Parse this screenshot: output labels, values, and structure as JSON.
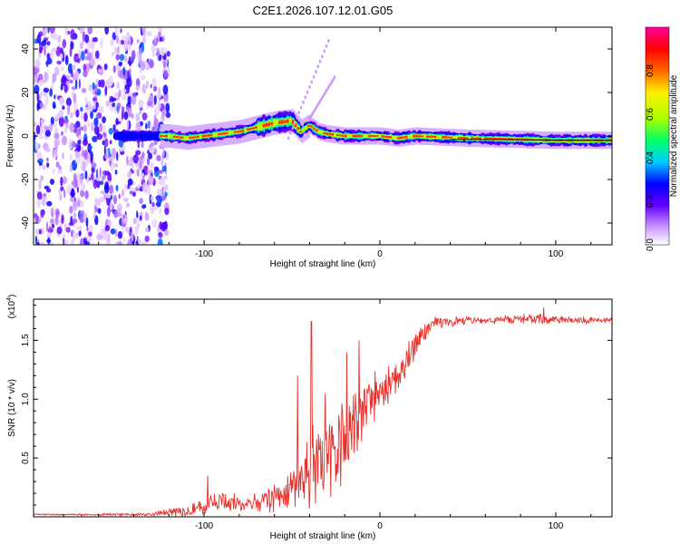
{
  "title": "C2E1.2026.107.12.01.G05",
  "chart_data": [
    {
      "type": "heatmap",
      "name": "spectrogram",
      "xlabel": "Height of straight line (km)",
      "ylabel": "Frequency (Hz)",
      "xlim": [
        -197,
        132
      ],
      "ylim": [
        -50,
        50
      ],
      "x_ticks": [
        -100,
        0,
        100
      ],
      "x_tick_labels": [
        "-100",
        "0",
        "100"
      ],
      "y_ticks": [
        -40,
        -20,
        0,
        20,
        40
      ],
      "y_tick_labels": [
        "-40",
        "-20",
        "0",
        "20",
        "40"
      ],
      "noise_region_x": [
        -197,
        -120
      ],
      "signal_track": [
        {
          "x": -150,
          "f": 0
        },
        {
          "x": -120,
          "f": 0
        },
        {
          "x": -110,
          "f": -1
        },
        {
          "x": -100,
          "f": 0
        },
        {
          "x": -90,
          "f": 1
        },
        {
          "x": -80,
          "f": 2
        },
        {
          "x": -70,
          "f": 4
        },
        {
          "x": -60,
          "f": 6
        },
        {
          "x": -50,
          "f": 7
        },
        {
          "x": -45,
          "f": 2
        },
        {
          "x": -40,
          "f": 5
        },
        {
          "x": -35,
          "f": 2
        },
        {
          "x": -30,
          "f": 1
        },
        {
          "x": -20,
          "f": 0
        },
        {
          "x": -10,
          "f": 0
        },
        {
          "x": 0,
          "f": 0
        },
        {
          "x": 10,
          "f": -1
        },
        {
          "x": 20,
          "f": 0
        },
        {
          "x": 50,
          "f": -1
        },
        {
          "x": 100,
          "f": -2
        },
        {
          "x": 130,
          "f": -2
        }
      ]
    },
    {
      "type": "colorbar",
      "name": "amplitude-colorbar",
      "label": "Normalized spectral amplitude",
      "range": [
        0,
        1
      ],
      "ticks": [
        0.0,
        0.2,
        0.4,
        0.6,
        0.8
      ],
      "tick_labels": [
        "0.0",
        "0.2",
        "0.4",
        "0.6",
        "0.8"
      ],
      "colors": [
        "#ffffff",
        "#cc99ff",
        "#6600ff",
        "#0000ff",
        "#00ccff",
        "#00ff66",
        "#aaff00",
        "#ffee00",
        "#ff6600",
        "#ff0000",
        "#ff0099"
      ]
    },
    {
      "type": "line",
      "name": "snr",
      "xlabel": "Height of straight line (km)",
      "ylabel": "SNR (10 * v/v)",
      "y_scale_label": "(x10",
      "y_scale_exp": "4",
      "y_scale_suffix": ")",
      "xlim": [
        -197,
        132
      ],
      "ylim": [
        0,
        1.85
      ],
      "x_ticks": [
        -100,
        0,
        100
      ],
      "x_tick_labels": [
        "-100",
        "0",
        "100"
      ],
      "y_ticks": [
        0.5,
        1.0,
        1.5
      ],
      "y_tick_labels": [
        "0.5",
        "1.0",
        "1.5"
      ],
      "color": "#e8302a",
      "envelope": [
        {
          "x": -197,
          "base": 0.02,
          "amp": 0.01
        },
        {
          "x": -130,
          "base": 0.02,
          "amp": 0.02
        },
        {
          "x": -110,
          "base": 0.06,
          "amp": 0.1
        },
        {
          "x": -90,
          "base": 0.12,
          "amp": 0.15
        },
        {
          "x": -70,
          "base": 0.12,
          "amp": 0.12
        },
        {
          "x": -55,
          "base": 0.2,
          "amp": 0.25
        },
        {
          "x": -45,
          "base": 0.35,
          "amp": 0.55
        },
        {
          "x": -35,
          "base": 0.4,
          "amp": 0.6
        },
        {
          "x": -25,
          "base": 0.55,
          "amp": 0.65
        },
        {
          "x": -15,
          "base": 0.8,
          "amp": 0.45
        },
        {
          "x": -5,
          "base": 1.0,
          "amp": 0.35
        },
        {
          "x": 10,
          "base": 1.2,
          "amp": 0.3
        },
        {
          "x": 20,
          "base": 1.45,
          "amp": 0.2
        },
        {
          "x": 30,
          "base": 1.65,
          "amp": 0.08
        },
        {
          "x": 60,
          "base": 1.67,
          "amp": 0.05
        },
        {
          "x": 90,
          "base": 1.68,
          "amp": 0.08
        },
        {
          "x": 132,
          "base": 1.67,
          "amp": 0.04
        }
      ],
      "spikes": [
        {
          "x": -39,
          "y": 1.66
        },
        {
          "x": -47,
          "y": 1.2
        },
        {
          "x": -19,
          "y": 1.4
        },
        {
          "x": -12,
          "y": 1.5
        },
        {
          "x": 93,
          "y": 1.78
        },
        {
          "x": -31,
          "y": 1.05
        },
        {
          "x": -98,
          "y": 0.35
        }
      ]
    }
  ]
}
